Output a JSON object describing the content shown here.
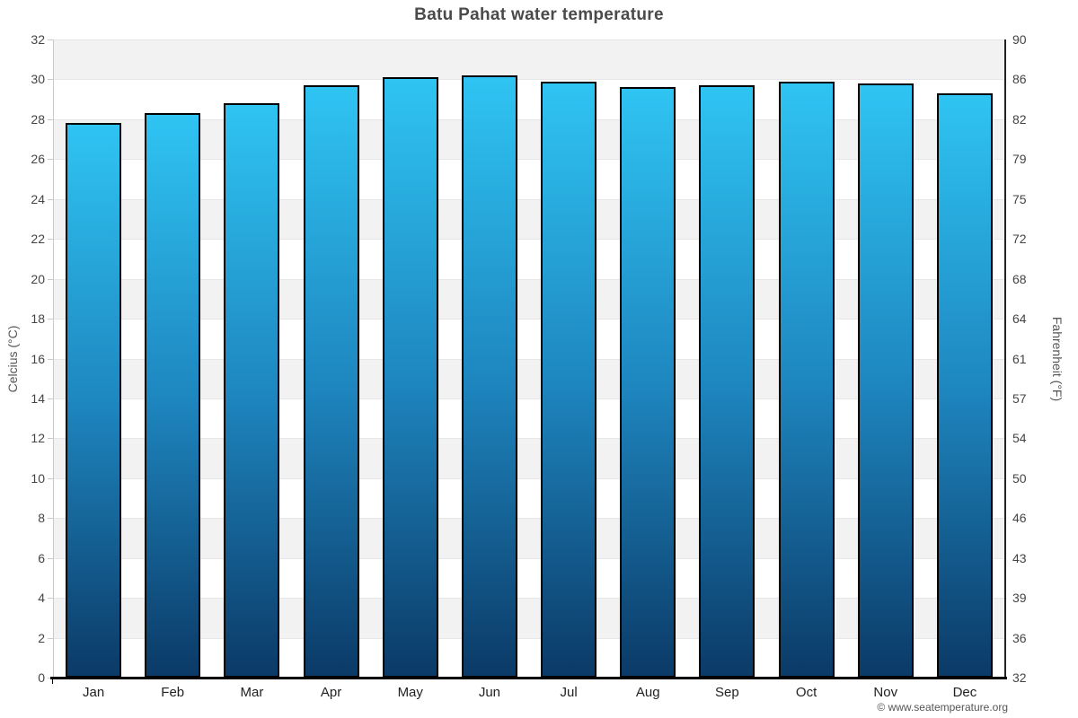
{
  "chart_data": {
    "type": "bar",
    "title": "Batu Pahat water temperature",
    "categories": [
      "Jan",
      "Feb",
      "Mar",
      "Apr",
      "May",
      "Jun",
      "Jul",
      "Aug",
      "Sep",
      "Oct",
      "Nov",
      "Dec"
    ],
    "values": [
      27.8,
      28.3,
      28.8,
      29.7,
      30.1,
      30.2,
      29.9,
      29.6,
      29.7,
      29.9,
      29.8,
      29.3
    ],
    "ylabel_left": "Celcius (°C)",
    "ylabel_right": "Fahrenheit (°F)",
    "yticks_left": [
      32,
      30,
      28,
      26,
      24,
      22,
      20,
      18,
      16,
      14,
      12,
      10,
      8,
      6,
      4,
      2,
      0
    ],
    "yticks_right": [
      90,
      86,
      82,
      79,
      75,
      72,
      68,
      64,
      61,
      57,
      54,
      50,
      46,
      43,
      39,
      36,
      32
    ],
    "ylim": [
      0,
      32
    ],
    "grid": "horizontal-bands-2deg",
    "legend": "none",
    "colors": {
      "bar_gradient_top": "#2fc4f3",
      "bar_gradient_mid": "#1e87c0",
      "bar_gradient_bottom": "#0b3a67",
      "bar_border": "#000000",
      "band_gray": "#f2f2f2",
      "band_white": "#ffffff",
      "gridline": "#e6e6e6",
      "axis_left": "#c9c9c9",
      "axis_right": "#222222",
      "axis_bottom": "#000000",
      "title_text": "#4a4a4a",
      "tick_label": "#444444",
      "month_label": "#222222",
      "axis_title": "#555555",
      "copyright_text": "#555555"
    }
  },
  "footer": {
    "copyright": "© www.seatemperature.org"
  }
}
